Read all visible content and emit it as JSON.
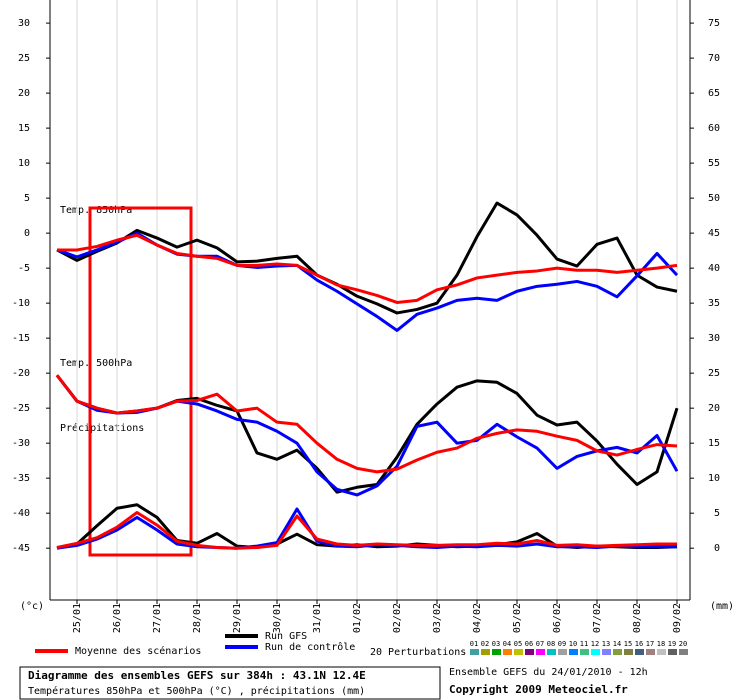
{
  "chart_data": {
    "type": "line",
    "categories": [
      null,
      "25/01",
      null,
      "26/01",
      null,
      "27/01",
      null,
      "28/01",
      null,
      "29/01",
      null,
      "30/01",
      null,
      "31/01",
      null,
      "01/02",
      null,
      "02/02",
      null,
      "03/02",
      null,
      "04/02",
      null,
      "05/02",
      null,
      "06/02",
      null,
      "07/02",
      null,
      "08/02",
      null,
      "09/02"
    ],
    "ylim": [
      -52.4,
      33.3
    ],
    "yticks": [
      30,
      25,
      20,
      15,
      10,
      5,
      0,
      -5,
      -10,
      -15,
      -20,
      -25,
      -30,
      -35,
      -40,
      -45
    ],
    "y2lim": [
      -7.4,
      78.3
    ],
    "y2ticks": [
      75,
      70,
      65,
      60,
      55,
      50,
      45,
      40,
      35,
      30,
      25,
      20,
      15,
      10,
      5,
      0
    ],
    "y_unit": "(°c)",
    "y2_unit": "(mm)",
    "grid": true,
    "labels": {
      "t850": "Temp. 850hPa",
      "t500": "Temp. 500hPa",
      "precip": "Précipitations"
    },
    "series": [
      {
        "name": "Run GFS",
        "color": "#000000",
        "t850": [
          -2.4,
          -3.9,
          -2.6,
          -1.4,
          0.4,
          -0.7,
          -2,
          -1,
          -2.1,
          -4.1,
          -4,
          -3.6,
          -3.3,
          -6,
          -7.3,
          -9,
          -10.1,
          -11.4,
          -10.9,
          -10,
          -6,
          -0.5,
          4.3,
          2.6,
          -0.3,
          -3.7,
          -4.7,
          -1.6,
          -0.7,
          -6,
          -7.7,
          -8.3
        ],
        "t500": [
          -20.3,
          -24,
          -25,
          -25.7,
          -25.4,
          -25,
          -23.9,
          -23.6,
          -24.6,
          -25.4,
          -31.4,
          -32.3,
          -31,
          -33.6,
          -37,
          -36.3,
          -35.9,
          -32,
          -27.3,
          -24.4,
          -22,
          -21.1,
          -21.3,
          -22.9,
          -26,
          -27.4,
          -27,
          -29.7,
          -33,
          -35.9,
          -34.1,
          -25
        ],
        "precip": [
          0,
          0.6,
          3.2,
          5.7,
          6.2,
          4.4,
          1.1,
          0.7,
          2.1,
          0.3,
          0.1,
          0.6,
          2,
          0.5,
          0.3,
          0.5,
          0.2,
          0.3,
          0.6,
          0.4,
          0.2,
          0.3,
          0.5,
          0.9,
          2.1,
          0.3,
          0.1,
          0.3,
          0.2,
          0.1,
          0.1,
          0.2
        ]
      },
      {
        "name": "Run de contrôle",
        "color": "#0000ff",
        "t850": [
          -2.4,
          -3.4,
          -2.4,
          -1.3,
          0,
          -1.7,
          -3,
          -3.3,
          -3.3,
          -4.6,
          -4.9,
          -4.7,
          -4.6,
          -6.7,
          -8.3,
          -10.1,
          -11.9,
          -13.9,
          -11.6,
          -10.7,
          -9.6,
          -9.3,
          -9.6,
          -8.3,
          -7.6,
          -7.3,
          -6.9,
          -7.6,
          -9.1,
          -6.1,
          -2.9,
          -6
        ],
        "t500": [
          -20.3,
          -24,
          -25.3,
          -25.7,
          -25.6,
          -25,
          -24,
          -24.4,
          -25.4,
          -26.6,
          -27,
          -28.3,
          -30,
          -34.1,
          -36.6,
          -37.4,
          -36.1,
          -33.3,
          -27.6,
          -27,
          -30,
          -29.6,
          -27.3,
          -29.1,
          -30.7,
          -33.6,
          -31.9,
          -31.1,
          -30.6,
          -31.4,
          -28.9,
          -34
        ],
        "precip": [
          0,
          0.4,
          1.3,
          2.6,
          4.4,
          2.6,
          0.6,
          0.2,
          0.1,
          0,
          0.3,
          0.8,
          5.6,
          1,
          0.3,
          0.2,
          0.5,
          0.4,
          0.2,
          0.1,
          0.3,
          0.2,
          0.4,
          0.3,
          0.6,
          0.2,
          0.2,
          0.1,
          0.3,
          0.2,
          0.2,
          0.2
        ]
      },
      {
        "name": "Moyenne des scénarios",
        "color": "#ff0000",
        "t850": [
          -2.4,
          -2.4,
          -1.9,
          -1,
          -0.3,
          -1.7,
          -2.9,
          -3.3,
          -3.6,
          -4.6,
          -4.6,
          -4.4,
          -4.6,
          -6,
          -7.4,
          -8.1,
          -8.9,
          -9.9,
          -9.6,
          -8.1,
          -7.4,
          -6.4,
          -6,
          -5.6,
          -5.4,
          -5,
          -5.3,
          -5.3,
          -5.6,
          -5.3,
          -5,
          -4.6
        ],
        "t500": [
          -20.3,
          -24,
          -25,
          -25.7,
          -25.4,
          -25,
          -24,
          -23.9,
          -23,
          -25.4,
          -25,
          -27,
          -27.3,
          -30,
          -32.3,
          -33.6,
          -34.1,
          -33.7,
          -32.4,
          -31.3,
          -30.7,
          -29.3,
          -28.6,
          -28.1,
          -28.3,
          -29,
          -29.6,
          -31.1,
          -31.7,
          -30.9,
          -30.2,
          -30.4
        ],
        "precip": [
          0.1,
          0.7,
          1.5,
          3,
          5.1,
          3.3,
          1,
          0.4,
          0.1,
          0,
          0.1,
          0.4,
          4.6,
          1.3,
          0.6,
          0.4,
          0.6,
          0.5,
          0.4,
          0.4,
          0.5,
          0.5,
          0.7,
          0.6,
          1.1,
          0.4,
          0.5,
          0.3,
          0.4,
          0.5,
          0.6,
          0.6
        ]
      }
    ],
    "perturbations": {
      "label": "20 Perturbations",
      "members": [
        {
          "label": "01",
          "color": "#40a0a0"
        },
        {
          "label": "02",
          "color": "#a0a000"
        },
        {
          "label": "03",
          "color": "#00a000"
        },
        {
          "label": "04",
          "color": "#ff8000"
        },
        {
          "label": "05",
          "color": "#c0c000"
        },
        {
          "label": "06",
          "color": "#800080"
        },
        {
          "label": "07",
          "color": "#ff00ff"
        },
        {
          "label": "08",
          "color": "#00c0c0"
        },
        {
          "label": "09",
          "color": "#a0a0a0"
        },
        {
          "label": "10",
          "color": "#0080ff"
        },
        {
          "label": "11",
          "color": "#40c080"
        },
        {
          "label": "12",
          "color": "#00ffff"
        },
        {
          "label": "13",
          "color": "#8080ff"
        },
        {
          "label": "14",
          "color": "#80a040"
        },
        {
          "label": "15",
          "color": "#808040"
        },
        {
          "label": "16",
          "color": "#406080"
        },
        {
          "label": "17",
          "color": "#a08080"
        },
        {
          "label": "18",
          "color": "#c0c0c0"
        },
        {
          "label": "19",
          "color": "#606060"
        },
        {
          "label": "20",
          "color": "#808080"
        }
      ]
    },
    "footer": {
      "title": "Diagramme des ensembles GEFS sur 384h : 43.1N 12.4E",
      "subtitle": "Températures 850hPa et 500hPa (°C) , précipitations (mm)",
      "run": "Ensemble GEFS du 24/01/2010 - 12h",
      "copyright": "Copyright 2009 Meteociel.fr"
    }
  }
}
